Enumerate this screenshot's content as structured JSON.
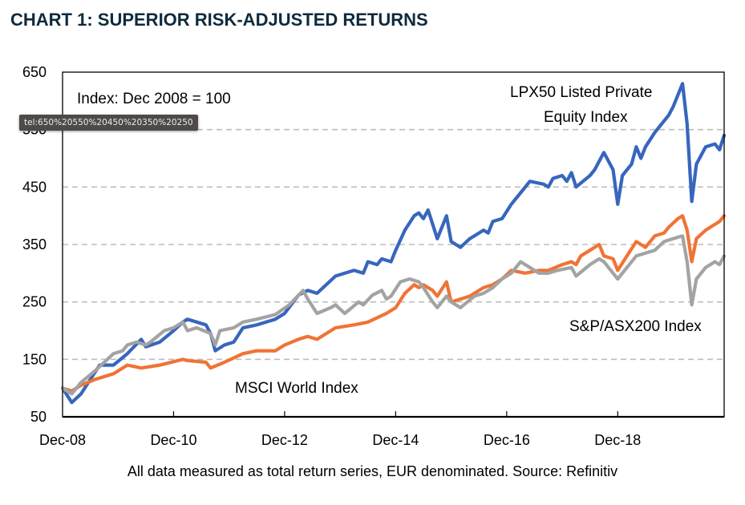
{
  "title": "CHART 1: SUPERIOR RISK-ADJUSTED RETURNS",
  "footnote": "All data measured as total return series, EUR denominated. Source: Refinitiv",
  "tooltip": "tel:650%20550%20450%20350%20250",
  "chart_data": {
    "type": "line",
    "title": "CHART 1: SUPERIOR RISK-ADJUSTED RETURNS",
    "xlabel": "",
    "ylabel": "",
    "x_unit": "months since Dec-08",
    "xlim": [
      0,
      143
    ],
    "ylim": [
      50,
      650
    ],
    "yticks": [
      50,
      150,
      250,
      350,
      450,
      550,
      650
    ],
    "gridlines_at": [
      150,
      250,
      350,
      450,
      550
    ],
    "grid": "horizontal dashed",
    "xticks": [
      {
        "month": 0,
        "label": "Dec-08"
      },
      {
        "month": 24,
        "label": "Dec-10"
      },
      {
        "month": 48,
        "label": "Dec-12"
      },
      {
        "month": 72,
        "label": "Dec-14"
      },
      {
        "month": 96,
        "label": "Dec-16"
      },
      {
        "month": 120,
        "label": "Dec-18"
      }
    ],
    "annotations": [
      {
        "text": "Index: Dec 2008 = 100",
        "placement": "top-left"
      },
      {
        "text": "LPX50 Listed Private",
        "placement": "top-right-line1"
      },
      {
        "text": "Equity Index",
        "placement": "top-right-line2"
      },
      {
        "text": "MSCI World Index",
        "placement": "bottom-left-center"
      },
      {
        "text": "S&P/ASX200 Index",
        "placement": "lower-right"
      }
    ],
    "series": [
      {
        "name": "LPX50 Listed Private Equity Index",
        "color": "#3766bd",
        "points": [
          [
            0,
            100
          ],
          [
            2,
            75
          ],
          [
            4,
            90
          ],
          [
            6,
            115
          ],
          [
            8,
            140
          ],
          [
            11,
            140
          ],
          [
            14,
            160
          ],
          [
            17,
            185
          ],
          [
            18,
            172
          ],
          [
            21,
            180
          ],
          [
            24,
            200
          ],
          [
            26,
            215
          ],
          [
            27,
            220
          ],
          [
            31,
            210
          ],
          [
            32,
            195
          ],
          [
            33,
            165
          ],
          [
            35,
            175
          ],
          [
            37,
            180
          ],
          [
            39,
            205
          ],
          [
            42,
            210
          ],
          [
            46,
            220
          ],
          [
            48,
            230
          ],
          [
            51,
            262
          ],
          [
            53,
            270
          ],
          [
            55,
            265
          ],
          [
            57,
            280
          ],
          [
            59,
            295
          ],
          [
            63,
            305
          ],
          [
            65,
            300
          ],
          [
            66,
            320
          ],
          [
            68,
            315
          ],
          [
            69,
            325
          ],
          [
            71,
            320
          ],
          [
            72,
            340
          ],
          [
            74,
            375
          ],
          [
            76,
            400
          ],
          [
            77,
            405
          ],
          [
            78,
            395
          ],
          [
            79,
            410
          ],
          [
            81,
            360
          ],
          [
            83,
            400
          ],
          [
            84,
            355
          ],
          [
            86,
            345
          ],
          [
            88,
            360
          ],
          [
            89,
            365
          ],
          [
            91,
            375
          ],
          [
            92,
            370
          ],
          [
            93,
            390
          ],
          [
            95,
            395
          ],
          [
            97,
            420
          ],
          [
            99,
            440
          ],
          [
            101,
            460
          ],
          [
            104,
            455
          ],
          [
            105,
            450
          ],
          [
            106,
            465
          ],
          [
            108,
            470
          ],
          [
            109,
            460
          ],
          [
            110,
            475
          ],
          [
            111,
            450
          ],
          [
            114,
            470
          ],
          [
            115,
            480
          ],
          [
            116,
            495
          ],
          [
            117,
            510
          ],
          [
            119,
            480
          ],
          [
            120,
            420
          ],
          [
            121,
            470
          ],
          [
            123,
            490
          ],
          [
            124,
            520
          ],
          [
            125,
            500
          ],
          [
            126,
            520
          ],
          [
            128,
            545
          ],
          [
            130,
            565
          ],
          [
            131,
            575
          ],
          [
            132,
            590
          ],
          [
            134,
            630
          ],
          [
            135,
            560
          ],
          [
            136,
            425
          ],
          [
            137,
            490
          ],
          [
            139,
            520
          ],
          [
            141,
            525
          ],
          [
            142,
            515
          ],
          [
            143,
            540
          ]
        ]
      },
      {
        "name": "MSCI World Index",
        "color": "#f07336",
        "points": [
          [
            0,
            100
          ],
          [
            2,
            95
          ],
          [
            4,
            105
          ],
          [
            7,
            115
          ],
          [
            11,
            125
          ],
          [
            14,
            140
          ],
          [
            17,
            135
          ],
          [
            21,
            140
          ],
          [
            26,
            150
          ],
          [
            27,
            148
          ],
          [
            31,
            145
          ],
          [
            32,
            135
          ],
          [
            35,
            145
          ],
          [
            39,
            160
          ],
          [
            42,
            165
          ],
          [
            46,
            165
          ],
          [
            48,
            175
          ],
          [
            51,
            185
          ],
          [
            53,
            190
          ],
          [
            55,
            185
          ],
          [
            57,
            195
          ],
          [
            59,
            205
          ],
          [
            63,
            210
          ],
          [
            66,
            215
          ],
          [
            70,
            230
          ],
          [
            72,
            240
          ],
          [
            74,
            265
          ],
          [
            76,
            280
          ],
          [
            77,
            275
          ],
          [
            78,
            280
          ],
          [
            80,
            270
          ],
          [
            81,
            260
          ],
          [
            83,
            285
          ],
          [
            84,
            250
          ],
          [
            86,
            255
          ],
          [
            88,
            260
          ],
          [
            91,
            275
          ],
          [
            93,
            280
          ],
          [
            95,
            290
          ],
          [
            97,
            305
          ],
          [
            100,
            300
          ],
          [
            103,
            305
          ],
          [
            105,
            305
          ],
          [
            108,
            315
          ],
          [
            110,
            320
          ],
          [
            111,
            315
          ],
          [
            112,
            330
          ],
          [
            114,
            340
          ],
          [
            116,
            350
          ],
          [
            117,
            330
          ],
          [
            119,
            325
          ],
          [
            120,
            305
          ],
          [
            122,
            330
          ],
          [
            124,
            355
          ],
          [
            126,
            345
          ],
          [
            128,
            365
          ],
          [
            130,
            370
          ],
          [
            131,
            380
          ],
          [
            133,
            395
          ],
          [
            134,
            400
          ],
          [
            135,
            375
          ],
          [
            136,
            320
          ],
          [
            137,
            360
          ],
          [
            139,
            375
          ],
          [
            141,
            385
          ],
          [
            142,
            390
          ],
          [
            143,
            400
          ]
        ]
      },
      {
        "name": "S&P/ASX200 Index",
        "color": "#a3a3a3",
        "points": [
          [
            0,
            100
          ],
          [
            2,
            90
          ],
          [
            4,
            110
          ],
          [
            7,
            130
          ],
          [
            11,
            160
          ],
          [
            13,
            165
          ],
          [
            14,
            175
          ],
          [
            16,
            180
          ],
          [
            18,
            175
          ],
          [
            19,
            180
          ],
          [
            22,
            200
          ],
          [
            24,
            205
          ],
          [
            26,
            215
          ],
          [
            27,
            200
          ],
          [
            29,
            205
          ],
          [
            32,
            195
          ],
          [
            33,
            175
          ],
          [
            34,
            200
          ],
          [
            37,
            205
          ],
          [
            39,
            215
          ],
          [
            42,
            220
          ],
          [
            46,
            228
          ],
          [
            49,
            245
          ],
          [
            52,
            270
          ],
          [
            53,
            255
          ],
          [
            55,
            230
          ],
          [
            58,
            240
          ],
          [
            59,
            245
          ],
          [
            61,
            230
          ],
          [
            64,
            250
          ],
          [
            65,
            245
          ],
          [
            67,
            262
          ],
          [
            69,
            270
          ],
          [
            70,
            255
          ],
          [
            71,
            260
          ],
          [
            73,
            285
          ],
          [
            75,
            290
          ],
          [
            77,
            285
          ],
          [
            78,
            275
          ],
          [
            80,
            250
          ],
          [
            81,
            240
          ],
          [
            83,
            260
          ],
          [
            84,
            250
          ],
          [
            86,
            240
          ],
          [
            89,
            260
          ],
          [
            91,
            265
          ],
          [
            93,
            275
          ],
          [
            95,
            290
          ],
          [
            97,
            300
          ],
          [
            99,
            320
          ],
          [
            101,
            310
          ],
          [
            103,
            300
          ],
          [
            105,
            300
          ],
          [
            107,
            305
          ],
          [
            110,
            310
          ],
          [
            111,
            295
          ],
          [
            114,
            315
          ],
          [
            116,
            325
          ],
          [
            117,
            320
          ],
          [
            119,
            300
          ],
          [
            120,
            290
          ],
          [
            122,
            310
          ],
          [
            124,
            330
          ],
          [
            128,
            340
          ],
          [
            130,
            355
          ],
          [
            132,
            360
          ],
          [
            134,
            365
          ],
          [
            135,
            320
          ],
          [
            136,
            245
          ],
          [
            137,
            290
          ],
          [
            139,
            310
          ],
          [
            141,
            320
          ],
          [
            142,
            315
          ],
          [
            143,
            330
          ]
        ]
      }
    ]
  }
}
